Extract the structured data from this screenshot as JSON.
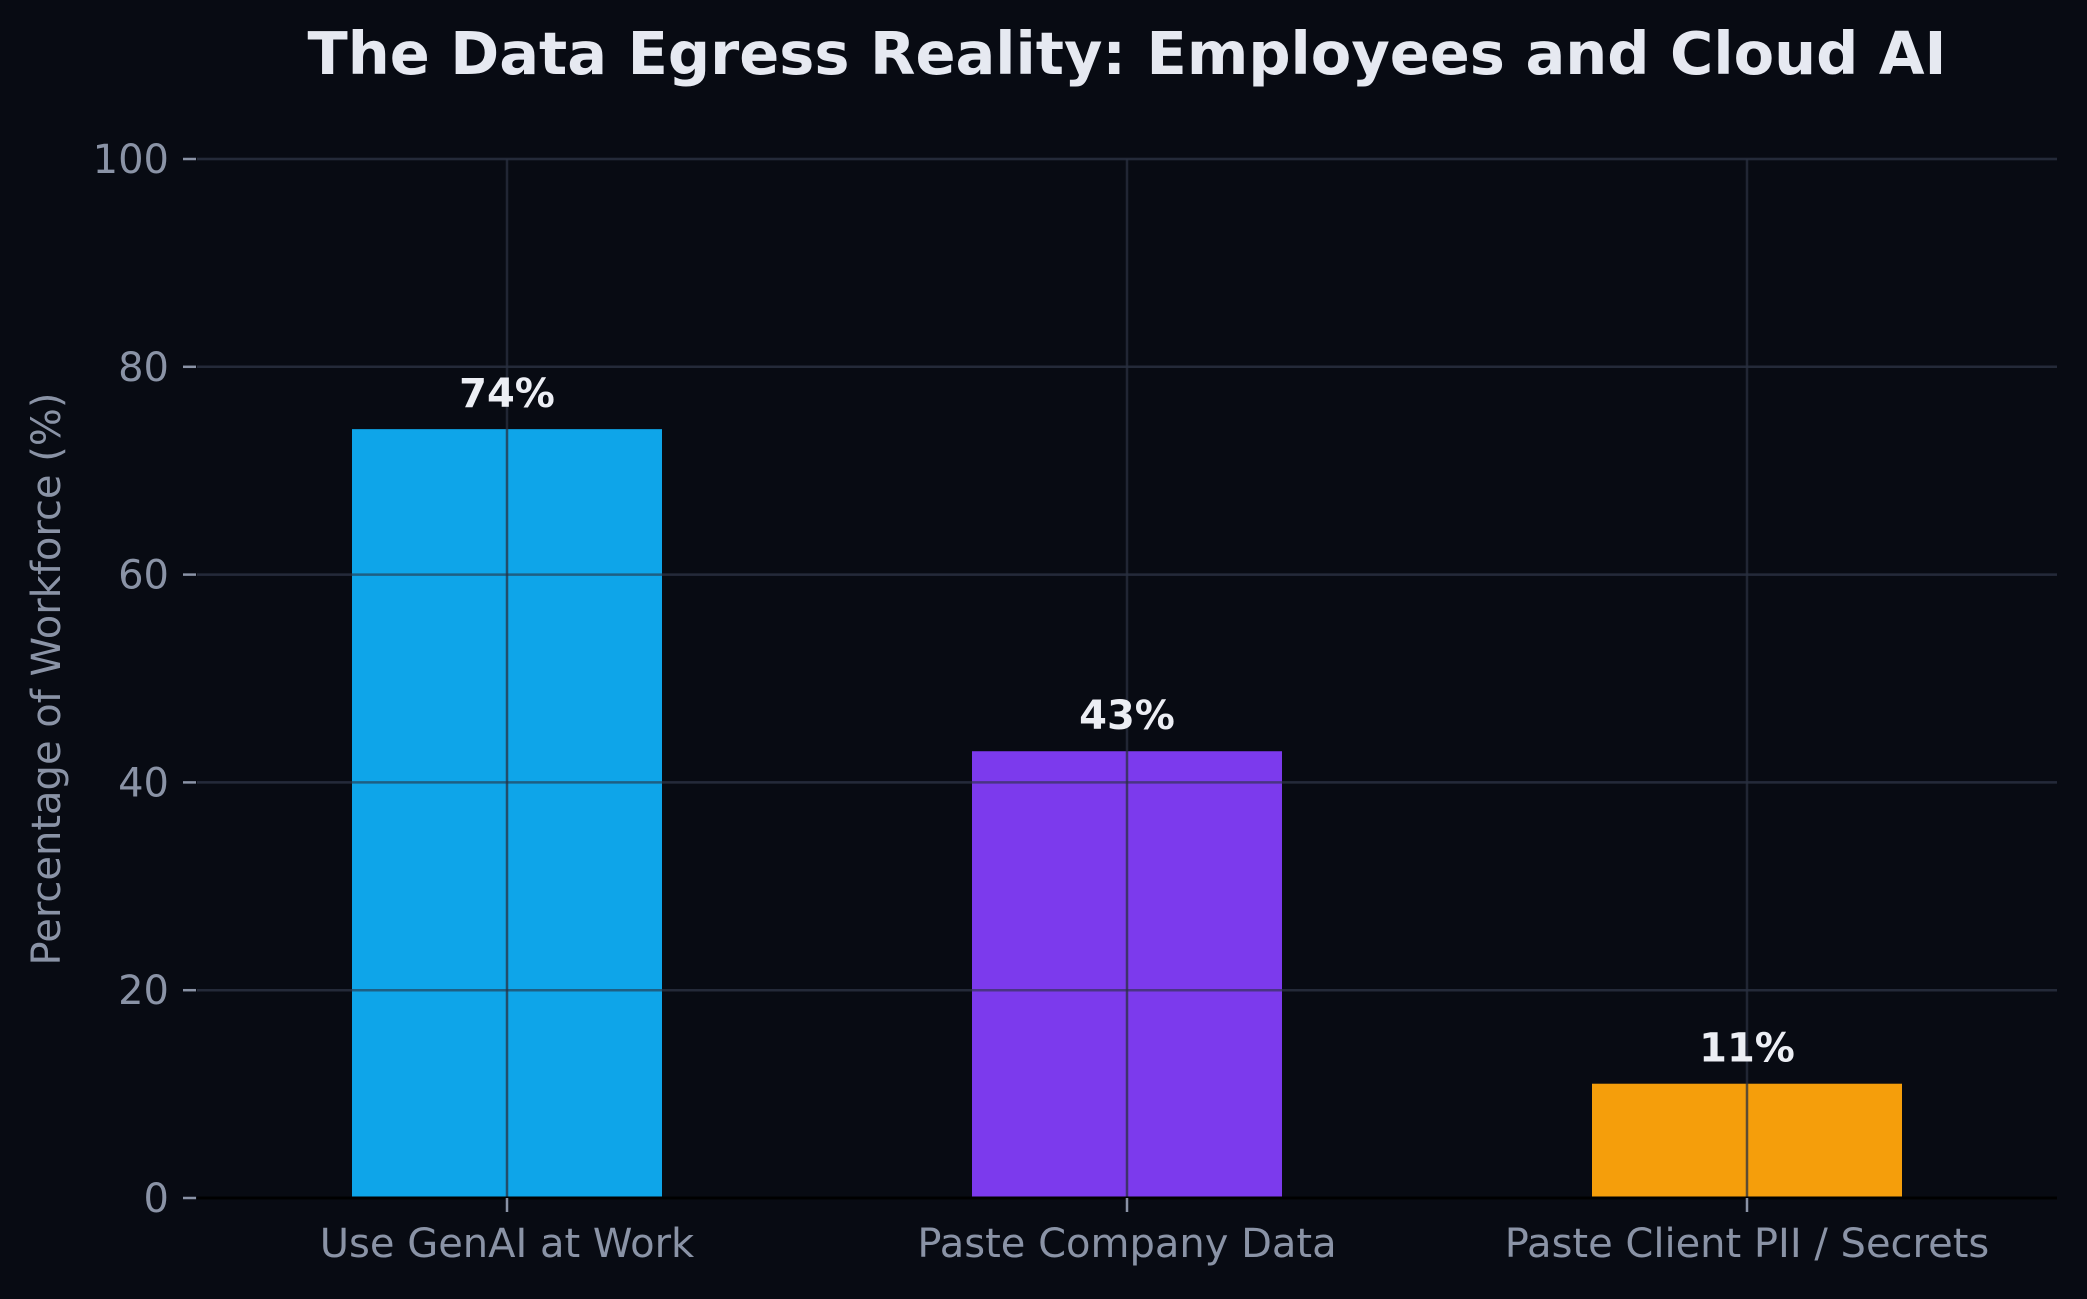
{
  "chart_data": {
    "type": "bar",
    "title": "The Data Egress Reality: Employees and Cloud AI",
    "xlabel": "",
    "ylabel": "Percentage of Workforce (%)",
    "ylim": [
      0,
      100
    ],
    "yticks": [
      0,
      20,
      40,
      60,
      80,
      100
    ],
    "categories": [
      "Use GenAI at Work",
      "Paste Company Data",
      "Paste Client PII / Secrets"
    ],
    "values": [
      74,
      43,
      11
    ],
    "value_labels": [
      "74%",
      "43%",
      "11%"
    ],
    "bar_colors": [
      "#0ea5e9",
      "#7c3aed",
      "#f59e0b"
    ],
    "grid": true,
    "legend": "none"
  },
  "colors": {
    "background": "#080b13",
    "grid": "#1c2230",
    "text_muted": "#8a93a6",
    "text_bright": "#e6e9f1"
  }
}
